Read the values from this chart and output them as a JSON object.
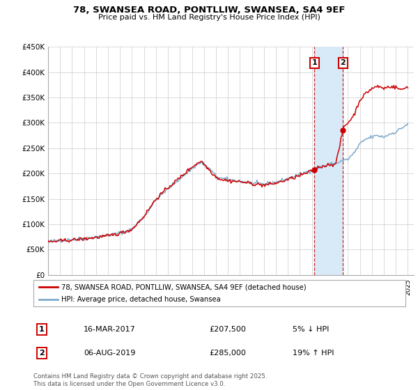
{
  "title": "78, SWANSEA ROAD, PONTLLIW, SWANSEA, SA4 9EF",
  "subtitle": "Price paid vs. HM Land Registry's House Price Index (HPI)",
  "ylabel_ticks": [
    "£0",
    "£50K",
    "£100K",
    "£150K",
    "£200K",
    "£250K",
    "£300K",
    "£350K",
    "£400K",
    "£450K"
  ],
  "ytick_vals": [
    0,
    50000,
    100000,
    150000,
    200000,
    250000,
    300000,
    350000,
    400000,
    450000
  ],
  "ylim": [
    0,
    450000
  ],
  "xlim_start": 1995.0,
  "xlim_end": 2025.5,
  "transaction1": {
    "date_year": 2017.21,
    "price": 207500,
    "label": "1",
    "hpi_diff": "5% ↓ HPI",
    "date_str": "16-MAR-2017"
  },
  "transaction2": {
    "date_year": 2019.59,
    "price": 285000,
    "label": "2",
    "hpi_diff": "19% ↑ HPI",
    "date_str": "06-AUG-2019"
  },
  "legend_line1": "78, SWANSEA ROAD, PONTLLIW, SWANSEA, SA4 9EF (detached house)",
  "legend_line2": "HPI: Average price, detached house, Swansea",
  "table_row1": [
    "1",
    "16-MAR-2017",
    "£207,500",
    "5% ↓ HPI"
  ],
  "table_row2": [
    "2",
    "06-AUG-2019",
    "£285,000",
    "19% ↑ HPI"
  ],
  "footer": "Contains HM Land Registry data © Crown copyright and database right 2025.\nThis data is licensed under the Open Government Licence v3.0.",
  "hpi_color": "#7faacc",
  "price_color": "#cc0000",
  "highlight_color": "#d8eaf8",
  "grid_color": "#cccccc",
  "background_color": "#ffffff"
}
